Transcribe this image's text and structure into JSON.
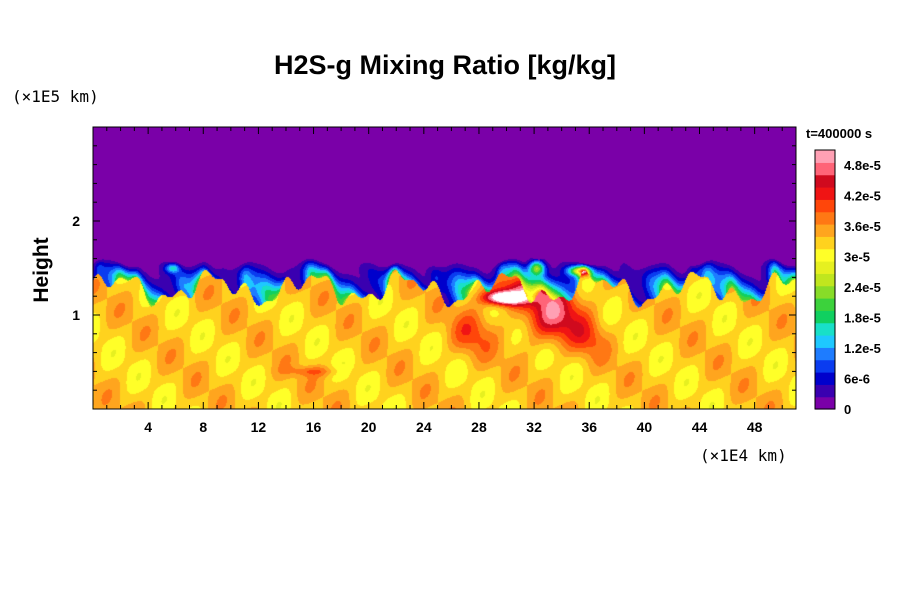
{
  "chart_data": {
    "type": "heatmap",
    "title": "H2S-g Mixing Ratio [kg/kg]",
    "time_label": "t=400000 s",
    "ylabel": "Height",
    "y_unit": "(×1E5 km)",
    "x_unit": "(×1E4 km)",
    "xlim": [
      0,
      51
    ],
    "ylim": [
      0,
      3
    ],
    "x_ticks": [
      "4",
      "8",
      "12",
      "16",
      "20",
      "24",
      "28",
      "32",
      "36",
      "40",
      "44",
      "48"
    ],
    "y_ticks": [
      "1",
      "2"
    ],
    "colorbar": {
      "min": 0,
      "max": 5.1e-05,
      "labels": [
        "4.8e-5",
        "4.2e-5",
        "3.6e-5",
        "3e-5",
        "2.4e-5",
        "1.8e-5",
        "1.2e-5",
        "6e-6",
        "0"
      ],
      "colors": [
        "#7a00a8",
        "#3a00b0",
        "#0000cc",
        "#0a3cf0",
        "#1e7cff",
        "#1ec8ff",
        "#18e0c8",
        "#10d060",
        "#3cd23c",
        "#88dc28",
        "#c0e61e",
        "#e6f020",
        "#ffff28",
        "#ffd21e",
        "#ffa51e",
        "#ff7814",
        "#ff460a",
        "#f01414",
        "#d00a1e",
        "#ff6478",
        "#ffa0b4"
      ]
    },
    "field_description_values": {
      "upper_layer": 0,
      "lower_layer_typical": 3.3e-05,
      "hotspot_max": 5.1e-05
    },
    "grid": false
  }
}
